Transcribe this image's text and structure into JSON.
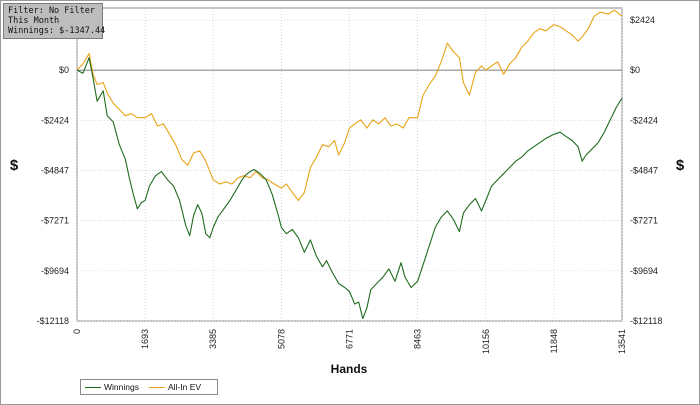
{
  "info_box": {
    "filter": "Filter: No Filter",
    "period": "This Month",
    "winnings": "Winnings: $-1347.44"
  },
  "chart_data": {
    "type": "line",
    "xlabel": "Hands",
    "ylabel": "$",
    "xlim": [
      0,
      13541
    ],
    "ylim": [
      -12118,
      3000
    ],
    "x_ticks": [
      0,
      1693,
      3385,
      5078,
      6771,
      8463,
      10156,
      11848,
      13541
    ],
    "x_tick_labels": [
      "0",
      "1693",
      "3385",
      "5078",
      "6771",
      "8463",
      "10156",
      "11848",
      "13541"
    ],
    "y_ticks": [
      2424,
      0,
      -2424,
      -4847,
      -7271,
      -9694,
      -12118
    ],
    "y_tick_labels": [
      "$2424",
      "$0",
      "-$2424",
      "-$4847",
      "-$7271",
      "-$9694",
      "-$12118"
    ],
    "grid": true,
    "legend_position": "bottom-left",
    "series": [
      {
        "name": "Winnings",
        "color": "#1f6b1f",
        "points": [
          [
            0,
            0
          ],
          [
            150,
            -150
          ],
          [
            300,
            600
          ],
          [
            400,
            -400
          ],
          [
            500,
            -1500
          ],
          [
            650,
            -1000
          ],
          [
            750,
            -2200
          ],
          [
            900,
            -2500
          ],
          [
            1050,
            -3600
          ],
          [
            1200,
            -4300
          ],
          [
            1300,
            -5200
          ],
          [
            1400,
            -6000
          ],
          [
            1500,
            -6700
          ],
          [
            1600,
            -6400
          ],
          [
            1693,
            -6300
          ],
          [
            1800,
            -5600
          ],
          [
            1950,
            -5100
          ],
          [
            2100,
            -4900
          ],
          [
            2250,
            -5300
          ],
          [
            2400,
            -5600
          ],
          [
            2550,
            -6300
          ],
          [
            2700,
            -7500
          ],
          [
            2800,
            -8000
          ],
          [
            2900,
            -7000
          ],
          [
            3000,
            -6500
          ],
          [
            3100,
            -6900
          ],
          [
            3200,
            -7900
          ],
          [
            3300,
            -8100
          ],
          [
            3385,
            -7600
          ],
          [
            3500,
            -7100
          ],
          [
            3650,
            -6700
          ],
          [
            3800,
            -6300
          ],
          [
            3950,
            -5800
          ],
          [
            4100,
            -5300
          ],
          [
            4200,
            -5050
          ],
          [
            4300,
            -4900
          ],
          [
            4400,
            -4800
          ],
          [
            4550,
            -5000
          ],
          [
            4700,
            -5300
          ],
          [
            4850,
            -6000
          ],
          [
            5000,
            -7000
          ],
          [
            5078,
            -7600
          ],
          [
            5200,
            -7900
          ],
          [
            5350,
            -7700
          ],
          [
            5500,
            -8100
          ],
          [
            5650,
            -8800
          ],
          [
            5800,
            -8200
          ],
          [
            5950,
            -9000
          ],
          [
            6100,
            -9500
          ],
          [
            6200,
            -9200
          ],
          [
            6350,
            -9800
          ],
          [
            6500,
            -10300
          ],
          [
            6650,
            -10500
          ],
          [
            6771,
            -10700
          ],
          [
            6900,
            -11300
          ],
          [
            7000,
            -11200
          ],
          [
            7100,
            -12000
          ],
          [
            7200,
            -11500
          ],
          [
            7300,
            -10600
          ],
          [
            7450,
            -10300
          ],
          [
            7600,
            -10000
          ],
          [
            7750,
            -9600
          ],
          [
            7900,
            -10200
          ],
          [
            8050,
            -9300
          ],
          [
            8150,
            -10000
          ],
          [
            8300,
            -10500
          ],
          [
            8463,
            -10200
          ],
          [
            8600,
            -9400
          ],
          [
            8750,
            -8500
          ],
          [
            8900,
            -7600
          ],
          [
            9050,
            -7100
          ],
          [
            9200,
            -6800
          ],
          [
            9350,
            -7200
          ],
          [
            9500,
            -7800
          ],
          [
            9600,
            -6900
          ],
          [
            9750,
            -6500
          ],
          [
            9900,
            -6200
          ],
          [
            10050,
            -6800
          ],
          [
            10156,
            -6300
          ],
          [
            10300,
            -5600
          ],
          [
            10450,
            -5300
          ],
          [
            10600,
            -5000
          ],
          [
            10750,
            -4700
          ],
          [
            10900,
            -4400
          ],
          [
            11050,
            -4200
          ],
          [
            11200,
            -3900
          ],
          [
            11350,
            -3700
          ],
          [
            11500,
            -3500
          ],
          [
            11650,
            -3300
          ],
          [
            11848,
            -3100
          ],
          [
            12000,
            -3000
          ],
          [
            12150,
            -3200
          ],
          [
            12300,
            -3400
          ],
          [
            12450,
            -3700
          ],
          [
            12550,
            -4400
          ],
          [
            12650,
            -4100
          ],
          [
            12800,
            -3800
          ],
          [
            12950,
            -3500
          ],
          [
            13100,
            -3000
          ],
          [
            13250,
            -2400
          ],
          [
            13400,
            -1800
          ],
          [
            13541,
            -1347
          ]
        ]
      },
      {
        "name": "All-In EV",
        "color": "#e8a317",
        "points": [
          [
            0,
            0
          ],
          [
            150,
            300
          ],
          [
            300,
            800
          ],
          [
            400,
            -200
          ],
          [
            500,
            -700
          ],
          [
            650,
            -600
          ],
          [
            750,
            -1100
          ],
          [
            900,
            -1600
          ],
          [
            1050,
            -1900
          ],
          [
            1200,
            -2200
          ],
          [
            1350,
            -2100
          ],
          [
            1500,
            -2300
          ],
          [
            1693,
            -2300
          ],
          [
            1850,
            -2100
          ],
          [
            2000,
            -2700
          ],
          [
            2150,
            -2600
          ],
          [
            2300,
            -3100
          ],
          [
            2450,
            -3600
          ],
          [
            2600,
            -4300
          ],
          [
            2750,
            -4600
          ],
          [
            2900,
            -4000
          ],
          [
            3050,
            -3900
          ],
          [
            3200,
            -4400
          ],
          [
            3385,
            -5300
          ],
          [
            3550,
            -5500
          ],
          [
            3700,
            -5400
          ],
          [
            3850,
            -5500
          ],
          [
            4000,
            -5200
          ],
          [
            4150,
            -5100
          ],
          [
            4300,
            -5200
          ],
          [
            4450,
            -4900
          ],
          [
            4600,
            -5200
          ],
          [
            4750,
            -5300
          ],
          [
            4900,
            -5500
          ],
          [
            5078,
            -5700
          ],
          [
            5200,
            -5500
          ],
          [
            5350,
            -5900
          ],
          [
            5500,
            -6300
          ],
          [
            5650,
            -5900
          ],
          [
            5800,
            -4700
          ],
          [
            5950,
            -4200
          ],
          [
            6100,
            -3600
          ],
          [
            6250,
            -3700
          ],
          [
            6400,
            -3400
          ],
          [
            6500,
            -4100
          ],
          [
            6650,
            -3500
          ],
          [
            6771,
            -2800
          ],
          [
            6900,
            -2600
          ],
          [
            7050,
            -2400
          ],
          [
            7200,
            -2800
          ],
          [
            7350,
            -2400
          ],
          [
            7500,
            -2600
          ],
          [
            7650,
            -2300
          ],
          [
            7800,
            -2700
          ],
          [
            7950,
            -2600
          ],
          [
            8100,
            -2800
          ],
          [
            8250,
            -2300
          ],
          [
            8463,
            -2300
          ],
          [
            8600,
            -1200
          ],
          [
            8750,
            -700
          ],
          [
            8900,
            -300
          ],
          [
            9050,
            400
          ],
          [
            9200,
            1300
          ],
          [
            9350,
            900
          ],
          [
            9500,
            600
          ],
          [
            9600,
            -600
          ],
          [
            9750,
            -1200
          ],
          [
            9900,
            -100
          ],
          [
            10050,
            200
          ],
          [
            10156,
            0
          ],
          [
            10300,
            200
          ],
          [
            10450,
            400
          ],
          [
            10600,
            -200
          ],
          [
            10750,
            300
          ],
          [
            10900,
            600
          ],
          [
            11050,
            1100
          ],
          [
            11200,
            1400
          ],
          [
            11350,
            1800
          ],
          [
            11500,
            2000
          ],
          [
            11650,
            1900
          ],
          [
            11848,
            2200
          ],
          [
            12000,
            2100
          ],
          [
            12150,
            1900
          ],
          [
            12300,
            1700
          ],
          [
            12450,
            1400
          ],
          [
            12550,
            1600
          ],
          [
            12700,
            2000
          ],
          [
            12850,
            2600
          ],
          [
            13000,
            2800
          ],
          [
            13200,
            2700
          ],
          [
            13350,
            2900
          ],
          [
            13541,
            2600
          ]
        ]
      }
    ]
  }
}
